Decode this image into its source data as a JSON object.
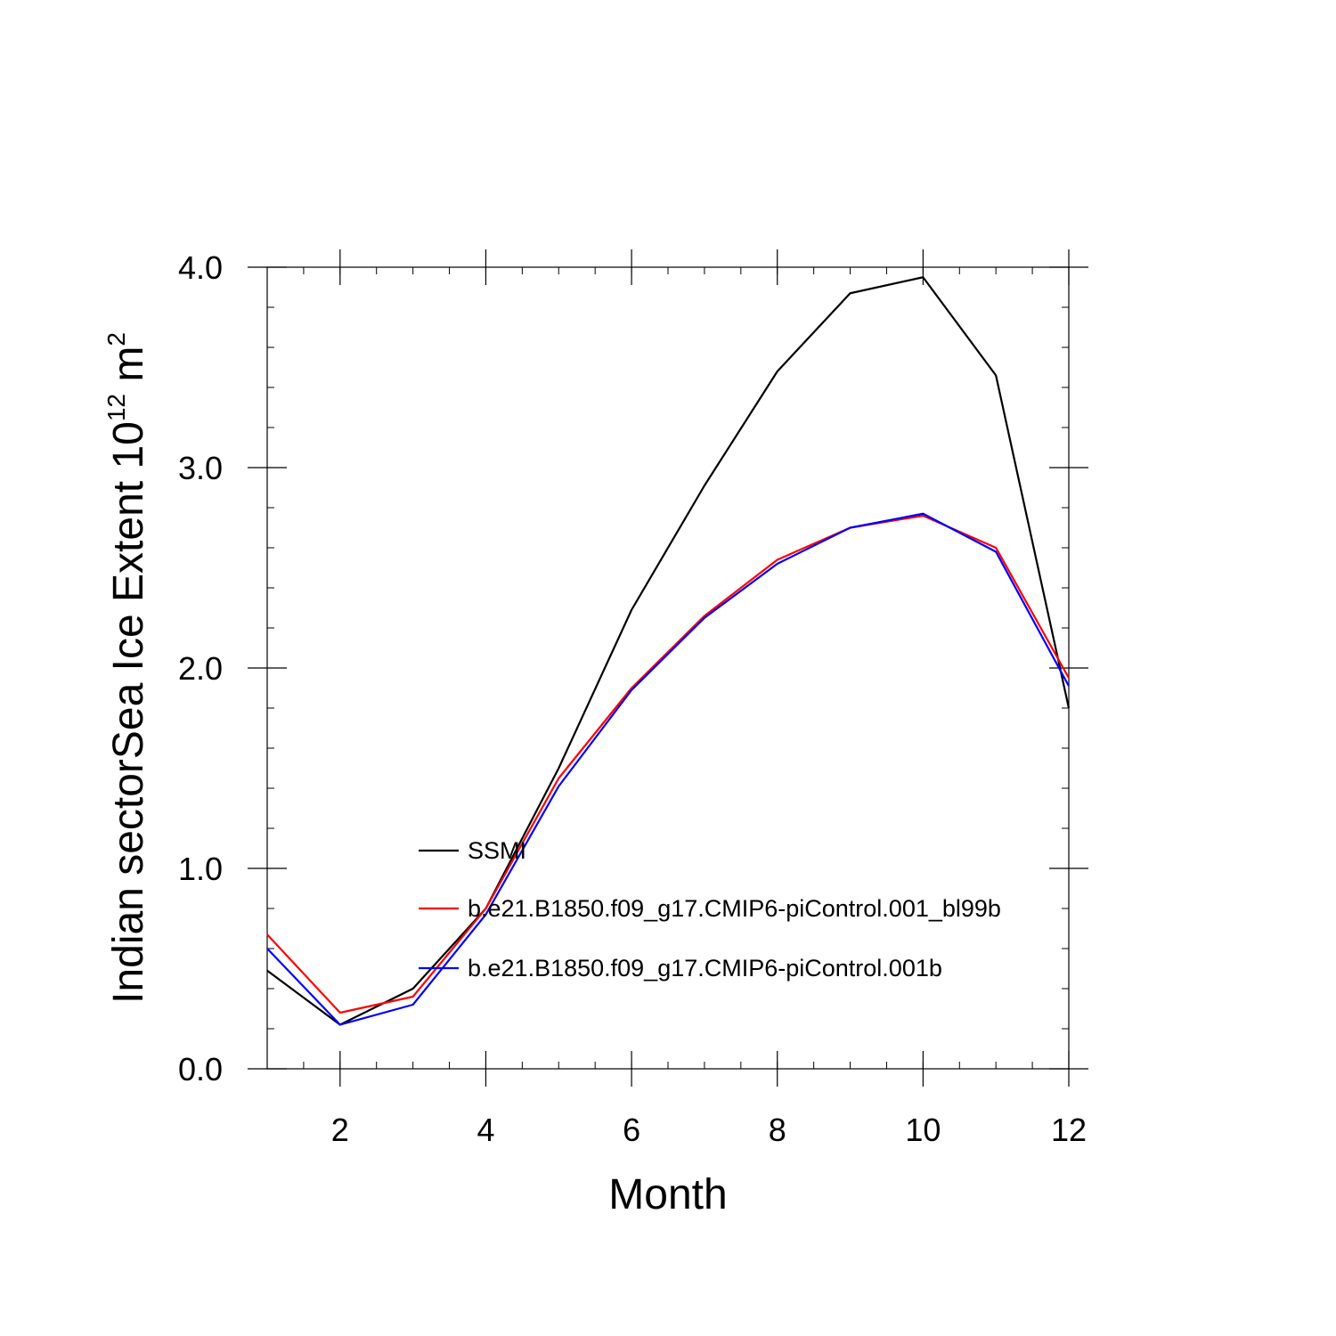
{
  "chart_data": {
    "type": "line",
    "xlabel": "Month",
    "ylabel_main": "Indian sectorSea Ice Extent 10",
    "ylabel_sup": "12",
    "ylabel_unit": " m",
    "ylabel_unit_sup": "2",
    "xlim": [
      1,
      12
    ],
    "ylim": [
      0,
      4
    ],
    "x_ticks": [
      2,
      4,
      6,
      8,
      10,
      12
    ],
    "x_tick_labels": [
      "2",
      "4",
      "6",
      "8",
      "10",
      "12"
    ],
    "y_ticks": [
      0,
      1,
      2,
      3,
      4
    ],
    "y_tick_labels": [
      "0.0",
      "1.0",
      "2.0",
      "3.0",
      "4.0"
    ],
    "x": [
      1,
      2,
      3,
      4,
      5,
      6,
      7,
      8,
      9,
      10,
      11,
      12
    ],
    "series": [
      {
        "name": "SSMI",
        "color": "#000000",
        "values": [
          0.49,
          0.22,
          0.4,
          0.8,
          1.5,
          2.29,
          2.91,
          3.48,
          3.87,
          3.95,
          3.46,
          1.8
        ]
      },
      {
        "name": "b.e21.B1850.f09_g17.CMIP6-piControl.001_bl99b",
        "color": "#ff0000",
        "values": [
          0.67,
          0.28,
          0.36,
          0.8,
          1.45,
          1.9,
          2.26,
          2.54,
          2.7,
          2.76,
          2.6,
          1.95
        ]
      },
      {
        "name": "b.e21.B1850.f09_g17.CMIP6-piControl.001b",
        "color": "#0000ff",
        "values": [
          0.6,
          0.22,
          0.32,
          0.77,
          1.41,
          1.89,
          2.25,
          2.52,
          2.7,
          2.77,
          2.58,
          1.91
        ]
      }
    ],
    "legend_position": "lower-center-inside",
    "grid": false
  }
}
